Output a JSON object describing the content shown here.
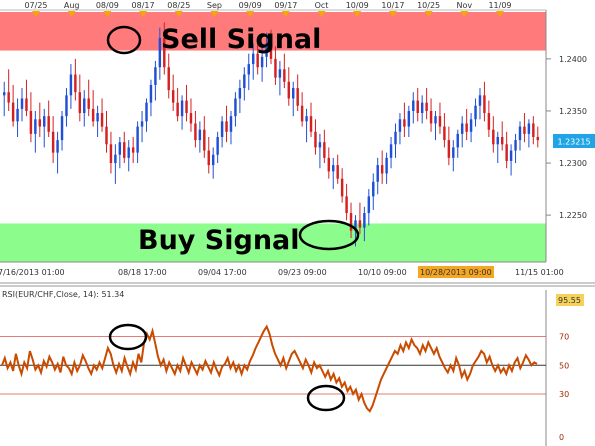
{
  "chart_data": [
    {
      "type": "candlestick",
      "top_axis": {
        "labels": [
          "07/25",
          "Aug",
          "08/09",
          "08/17",
          "08/25",
          "Sep",
          "09/09",
          "09/17",
          "Oct",
          "10/09",
          "10/17",
          "10/25",
          "Nov",
          "11/09"
        ]
      },
      "bottom_axis": {
        "labels": [
          "7/16/2013 01:00",
          "08/18 17:00",
          "09/04 17:00",
          "09/23 09:00",
          "10/10 09:00",
          "10/28/2013 09:00",
          "11/15 01:00"
        ],
        "highlighted": "10/28/2013 09:00"
      },
      "y_axis": {
        "ticks": [
          "1.2400",
          "1.2350",
          "1.2300",
          "1.2250"
        ],
        "last_price": "1.23215",
        "ylim": [
          1.2205,
          1.2445
        ]
      },
      "zones": [
        {
          "label": "Sell Signal",
          "color": "#ff7b7b",
          "range": [
            1.2408,
            1.2445
          ]
        },
        {
          "label": "Buy Signal",
          "color": "#8cfc8c",
          "range": [
            1.2205,
            1.2242
          ]
        }
      ],
      "colors": {
        "up": "#1f4fd6",
        "down": "#d42020"
      },
      "candles": [
        [
          1.2365,
          1.2378,
          1.2345,
          1.2368
        ],
        [
          1.2368,
          1.239,
          1.235,
          1.2358
        ],
        [
          1.2358,
          1.2375,
          1.2335,
          1.234
        ],
        [
          1.234,
          1.2362,
          1.2325,
          1.2352
        ],
        [
          1.2352,
          1.2372,
          1.234,
          1.2362
        ],
        [
          1.2362,
          1.238,
          1.2345,
          1.235
        ],
        [
          1.235,
          1.2368,
          1.232,
          1.2328
        ],
        [
          1.2328,
          1.235,
          1.231,
          1.2342
        ],
        [
          1.2342,
          1.2358,
          1.2325,
          1.2335
        ],
        [
          1.2335,
          1.2352,
          1.2315,
          1.2345
        ],
        [
          1.2345,
          1.236,
          1.2325,
          1.233
        ],
        [
          1.233,
          1.2345,
          1.23,
          1.231
        ],
        [
          1.231,
          1.233,
          1.229,
          1.2322
        ],
        [
          1.2322,
          1.235,
          1.2312,
          1.2345
        ],
        [
          1.2345,
          1.2372,
          1.2335,
          1.2365
        ],
        [
          1.2365,
          1.2395,
          1.2352,
          1.2385
        ],
        [
          1.2385,
          1.24,
          1.236,
          1.2368
        ],
        [
          1.2368,
          1.2385,
          1.234,
          1.2348
        ],
        [
          1.2348,
          1.237,
          1.2335,
          1.2362
        ],
        [
          1.2362,
          1.238,
          1.2345,
          1.2352
        ],
        [
          1.2352,
          1.237,
          1.2335,
          1.234
        ],
        [
          1.234,
          1.2355,
          1.2325,
          1.2348
        ],
        [
          1.2348,
          1.2362,
          1.233,
          1.2335
        ],
        [
          1.2335,
          1.235,
          1.231,
          1.2318
        ],
        [
          1.2318,
          1.233,
          1.229,
          1.23
        ],
        [
          1.23,
          1.2318,
          1.228,
          1.2308
        ],
        [
          1.2308,
          1.2325,
          1.2295,
          1.232
        ],
        [
          1.232,
          1.233,
          1.23,
          1.2305
        ],
        [
          1.2305,
          1.2322,
          1.2292,
          1.2315
        ],
        [
          1.2315,
          1.2325,
          1.23,
          1.231
        ],
        [
          1.231,
          1.234,
          1.23,
          1.2335
        ],
        [
          1.2335,
          1.235,
          1.232,
          1.234
        ],
        [
          1.234,
          1.2362,
          1.233,
          1.2358
        ],
        [
          1.2358,
          1.238,
          1.2345,
          1.2375
        ],
        [
          1.2375,
          1.2398,
          1.236,
          1.2392
        ],
        [
          1.2392,
          1.243,
          1.238,
          1.242
        ],
        [
          1.242,
          1.2435,
          1.2385,
          1.2392
        ],
        [
          1.2392,
          1.2405,
          1.2362,
          1.237
        ],
        [
          1.237,
          1.2385,
          1.235,
          1.2358
        ],
        [
          1.2358,
          1.2372,
          1.234,
          1.2345
        ],
        [
          1.2345,
          1.2365,
          1.2332,
          1.236
        ],
        [
          1.236,
          1.2375,
          1.234,
          1.2348
        ],
        [
          1.2348,
          1.2362,
          1.233,
          1.2338
        ],
        [
          1.2338,
          1.235,
          1.2315,
          1.2322
        ],
        [
          1.2322,
          1.234,
          1.231,
          1.2332
        ],
        [
          1.2332,
          1.2345,
          1.2305,
          1.2312
        ],
        [
          1.2312,
          1.2325,
          1.229,
          1.2298
        ],
        [
          1.2298,
          1.2315,
          1.2285,
          1.2308
        ],
        [
          1.2308,
          1.233,
          1.23,
          1.2325
        ],
        [
          1.2325,
          1.2345,
          1.2315,
          1.234
        ],
        [
          1.234,
          1.2355,
          1.232,
          1.233
        ],
        [
          1.233,
          1.235,
          1.2318,
          1.2345
        ],
        [
          1.2345,
          1.2368,
          1.2335,
          1.2362
        ],
        [
          1.2362,
          1.238,
          1.2348,
          1.2372
        ],
        [
          1.2372,
          1.2392,
          1.236,
          1.2385
        ],
        [
          1.2385,
          1.2405,
          1.237,
          1.2395
        ],
        [
          1.2395,
          1.2415,
          1.238,
          1.2405
        ],
        [
          1.2405,
          1.242,
          1.2385,
          1.2392
        ],
        [
          1.2392,
          1.2412,
          1.2378,
          1.2402
        ],
        [
          1.2402,
          1.2425,
          1.2392,
          1.2415
        ],
        [
          1.2415,
          1.2428,
          1.2395,
          1.24
        ],
        [
          1.24,
          1.2412,
          1.2375,
          1.2382
        ],
        [
          1.2382,
          1.2398,
          1.2365,
          1.239
        ],
        [
          1.239,
          1.2405,
          1.2372,
          1.2378
        ],
        [
          1.2378,
          1.2392,
          1.2355,
          1.2362
        ],
        [
          1.2362,
          1.2378,
          1.2345,
          1.2372
        ],
        [
          1.2372,
          1.2385,
          1.235,
          1.2355
        ],
        [
          1.2355,
          1.2368,
          1.2335,
          1.234
        ],
        [
          1.234,
          1.2352,
          1.232,
          1.2345
        ],
        [
          1.2345,
          1.2358,
          1.2325,
          1.233
        ],
        [
          1.233,
          1.2342,
          1.2308,
          1.2315
        ],
        [
          1.2315,
          1.2328,
          1.2295,
          1.232
        ],
        [
          1.232,
          1.2332,
          1.23,
          1.2305
        ],
        [
          1.2305,
          1.2315,
          1.2285,
          1.2292
        ],
        [
          1.2292,
          1.2305,
          1.2275,
          1.2298
        ],
        [
          1.2298,
          1.2308,
          1.228,
          1.2285
        ],
        [
          1.2285,
          1.2295,
          1.2262,
          1.2268
        ],
        [
          1.2268,
          1.228,
          1.2245,
          1.2252
        ],
        [
          1.2252,
          1.2262,
          1.2228,
          1.2235
        ],
        [
          1.2235,
          1.225,
          1.222,
          1.2245
        ],
        [
          1.2245,
          1.2262,
          1.2232,
          1.2238
        ],
        [
          1.2238,
          1.2258,
          1.2225,
          1.2252
        ],
        [
          1.2252,
          1.2275,
          1.224,
          1.2268
        ],
        [
          1.2268,
          1.229,
          1.2255,
          1.2282
        ],
        [
          1.2282,
          1.2305,
          1.227,
          1.2298
        ],
        [
          1.2298,
          1.2312,
          1.228,
          1.229
        ],
        [
          1.229,
          1.231,
          1.228,
          1.2305
        ],
        [
          1.2305,
          1.2325,
          1.2295,
          1.2318
        ],
        [
          1.2318,
          1.2338,
          1.2305,
          1.233
        ],
        [
          1.233,
          1.2348,
          1.2318,
          1.2342
        ],
        [
          1.2342,
          1.2358,
          1.2325,
          1.2335
        ],
        [
          1.2335,
          1.2355,
          1.2325,
          1.235
        ],
        [
          1.235,
          1.2368,
          1.2338,
          1.236
        ],
        [
          1.236,
          1.2372,
          1.234,
          1.2348
        ],
        [
          1.2348,
          1.2365,
          1.2338,
          1.2358
        ],
        [
          1.2358,
          1.2372,
          1.2342,
          1.235
        ],
        [
          1.235,
          1.2362,
          1.233,
          1.2338
        ],
        [
          1.2338,
          1.235,
          1.2322,
          1.2345
        ],
        [
          1.2345,
          1.2358,
          1.2328,
          1.2335
        ],
        [
          1.2335,
          1.2348,
          1.2315,
          1.2322
        ],
        [
          1.2322,
          1.2335,
          1.2298,
          1.2305
        ],
        [
          1.2305,
          1.2322,
          1.2292,
          1.2315
        ],
        [
          1.2315,
          1.2332,
          1.2305,
          1.2328
        ],
        [
          1.2328,
          1.2345,
          1.2315,
          1.2338
        ],
        [
          1.2338,
          1.2352,
          1.2322,
          1.233
        ],
        [
          1.233,
          1.2348,
          1.232,
          1.2342
        ],
        [
          1.2342,
          1.2362,
          1.2335,
          1.2355
        ],
        [
          1.2355,
          1.2372,
          1.2342,
          1.2365
        ],
        [
          1.2365,
          1.2378,
          1.234,
          1.2348
        ],
        [
          1.2348,
          1.236,
          1.2325,
          1.2332
        ],
        [
          1.2332,
          1.2345,
          1.231,
          1.2318
        ],
        [
          1.2318,
          1.233,
          1.23,
          1.2325
        ],
        [
          1.2325,
          1.234,
          1.2312,
          1.2318
        ],
        [
          1.2318,
          1.233,
          1.2295,
          1.2302
        ],
        [
          1.2302,
          1.2318,
          1.2288,
          1.2312
        ],
        [
          1.2312,
          1.2328,
          1.23,
          1.2322
        ],
        [
          1.2322,
          1.234,
          1.2312,
          1.2335
        ],
        [
          1.2335,
          1.2348,
          1.232,
          1.2328
        ],
        [
          1.2328,
          1.2342,
          1.2315,
          1.2338
        ],
        [
          1.2338,
          1.2345,
          1.2318,
          1.2325
        ],
        [
          1.2325,
          1.2335,
          1.2315,
          1.2322
        ]
      ]
    },
    {
      "type": "line",
      "label": "RSI(EUR/CHF,Close, 14): 51.34",
      "max_value_label": "95.55",
      "ylim": [
        0,
        95.55
      ],
      "levels": [
        {
          "value": 70,
          "label": "70"
        },
        {
          "value": 50,
          "label": "50"
        },
        {
          "value": 30,
          "label": "30"
        },
        {
          "value": 0,
          "label": "0"
        }
      ],
      "line_color": "#c84b00",
      "series": [
        {
          "values": [
            50,
            55,
            48,
            52,
            46,
            58,
            50,
            44,
            52,
            48,
            60,
            54,
            47,
            50,
            45,
            53,
            49,
            56,
            52,
            47,
            51,
            45,
            56,
            50,
            48,
            44,
            52,
            46,
            50,
            57,
            53,
            48,
            44,
            50,
            47,
            52,
            48,
            55,
            62,
            58,
            50,
            45,
            51,
            46,
            55,
            49,
            44,
            52,
            47,
            58,
            52,
            66,
            72,
            68,
            74,
            65,
            56,
            50,
            54,
            46,
            52,
            48,
            44,
            50,
            46,
            55,
            50,
            45,
            52,
            48,
            44,
            50,
            47,
            53,
            49,
            45,
            52,
            47,
            43,
            49,
            51,
            55,
            48,
            52,
            46,
            50,
            44,
            50,
            47,
            53,
            57,
            62,
            66,
            70,
            74,
            77,
            72,
            64,
            58,
            54,
            50,
            55,
            48,
            53,
            58,
            60,
            56,
            52,
            48,
            54,
            50,
            45,
            52,
            48,
            50,
            46,
            42,
            46,
            40,
            44,
            38,
            41,
            35,
            38,
            32,
            35,
            30,
            33,
            26,
            30,
            24,
            20,
            18,
            22,
            28,
            34,
            40,
            44,
            48,
            52,
            56,
            60,
            58,
            64,
            60,
            66,
            62,
            68,
            64,
            62,
            58,
            64,
            60,
            66,
            62,
            58,
            62,
            56,
            52,
            48,
            45,
            50,
            46,
            55,
            50,
            42,
            46,
            40,
            44,
            50,
            53,
            56,
            60,
            58,
            52,
            56,
            50,
            46,
            50,
            45,
            48,
            44,
            50,
            46,
            52,
            55,
            48,
            52,
            57,
            54,
            50,
            52,
            51
          ]
        }
      ]
    }
  ]
}
